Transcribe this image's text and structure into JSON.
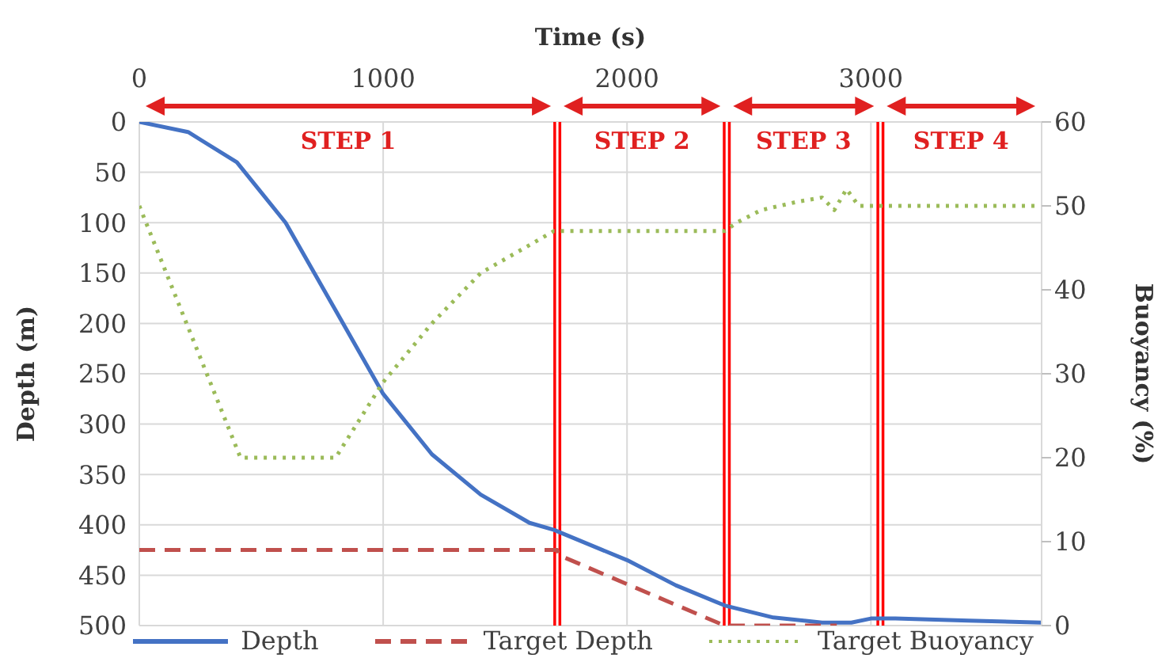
{
  "chart_data": {
    "type": "line",
    "xlabel": "Time (s)",
    "ylabel": "Depth (m)",
    "y2label": "Buoyancy (%)",
    "xlim": [
      0,
      3700
    ],
    "xticks": [
      0,
      1000,
      2000,
      3000
    ],
    "ylim": [
      500,
      0
    ],
    "yticks": [
      0,
      50,
      100,
      150,
      200,
      250,
      300,
      350,
      400,
      450,
      500
    ],
    "y2lim": [
      0,
      60
    ],
    "y2ticks": [
      0,
      10,
      20,
      30,
      40,
      50,
      60
    ],
    "grid": true,
    "legend": "bottom",
    "marker": "none",
    "series": [
      {
        "name": "Depth",
        "color": "#4472c4",
        "line_style": "solid",
        "x": [
          0,
          200,
          400,
          600,
          800,
          1000,
          1200,
          1400,
          1600,
          1700,
          2000,
          2200,
          2400,
          2600,
          2800,
          2920,
          3000,
          3100,
          3400,
          3700
        ],
        "values": [
          0,
          10,
          40,
          100,
          185,
          270,
          330,
          370,
          398,
          405,
          435,
          460,
          480,
          492,
          497,
          497,
          493,
          493,
          495,
          497
        ]
      },
      {
        "name": "Target Depth",
        "color": "#c0504d",
        "line_style": "dashed",
        "x": [
          0,
          1714,
          1720,
          2400,
          2860
        ],
        "values": [
          425,
          425,
          430,
          500,
          500
        ]
      },
      {
        "name": "Target Buoyancy",
        "color": "#9bbb59",
        "line_style": "dotted",
        "axis": "y2",
        "x": [
          0,
          415,
          805,
          1000,
          1200,
          1400,
          1700,
          2000,
          2400,
          2450,
          2550,
          2700,
          2800,
          2850,
          2900,
          2950,
          3000,
          3700
        ],
        "values": [
          50,
          20,
          20,
          29,
          36,
          42,
          47,
          47,
          47,
          48,
          49.5,
          50.5,
          51,
          49.5,
          52,
          50,
          50,
          50
        ]
      }
    ],
    "annotations": [
      "STEP 1",
      "STEP 2",
      "STEP 3",
      "STEP 4"
    ],
    "ref_lines": [
      {
        "axis": "x",
        "value": 1714,
        "color": "#ff0000"
      },
      {
        "axis": "x",
        "value": 2409,
        "color": "#ff0000"
      },
      {
        "axis": "x",
        "value": 3039,
        "color": "#ff0000"
      }
    ]
  }
}
